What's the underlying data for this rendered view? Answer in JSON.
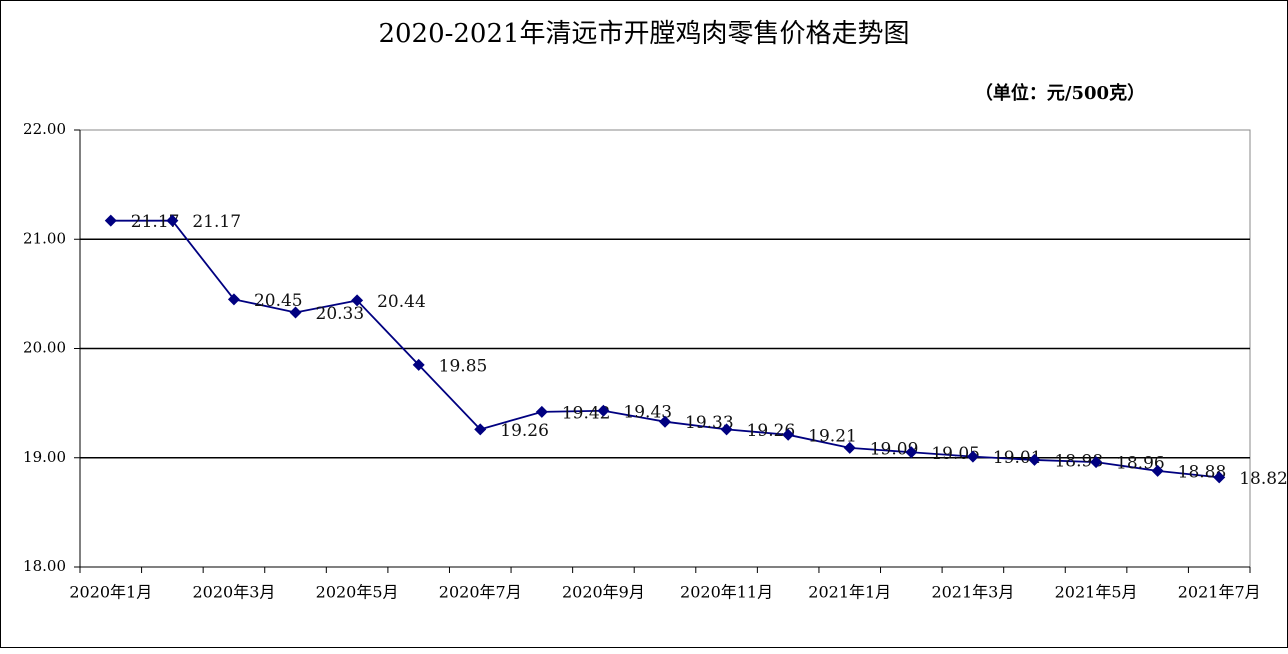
{
  "chart_data": {
    "type": "line",
    "title": "2020-2021年清远市开膛鸡肉零售价格走势图",
    "subtitle": "（单位：元/500克）",
    "categories": [
      "2020年1月",
      null,
      "2020年3月",
      null,
      "2020年5月",
      null,
      "2020年7月",
      null,
      "2020年9月",
      null,
      "2020年11月",
      null,
      "2021年1月",
      null,
      "2021年3月",
      null,
      "2021年5月",
      null,
      "2021年7月"
    ],
    "series": [
      {
        "name": "开膛鸡肉",
        "color": "#000080",
        "values": [
          21.17,
          21.17,
          20.45,
          20.33,
          20.44,
          19.85,
          19.26,
          19.42,
          19.43,
          19.33,
          19.26,
          19.21,
          19.09,
          19.05,
          19.01,
          18.98,
          18.96,
          18.88,
          18.82
        ]
      }
    ],
    "ylim": [
      18,
      22
    ],
    "yticks": [
      {
        "value": 18,
        "label": "18.00"
      },
      {
        "value": 19,
        "label": "19.00"
      },
      {
        "value": 20,
        "label": "20.00"
      },
      {
        "value": 21,
        "label": "21.00"
      },
      {
        "value": 22,
        "label": "22.00"
      }
    ],
    "grid": true
  }
}
